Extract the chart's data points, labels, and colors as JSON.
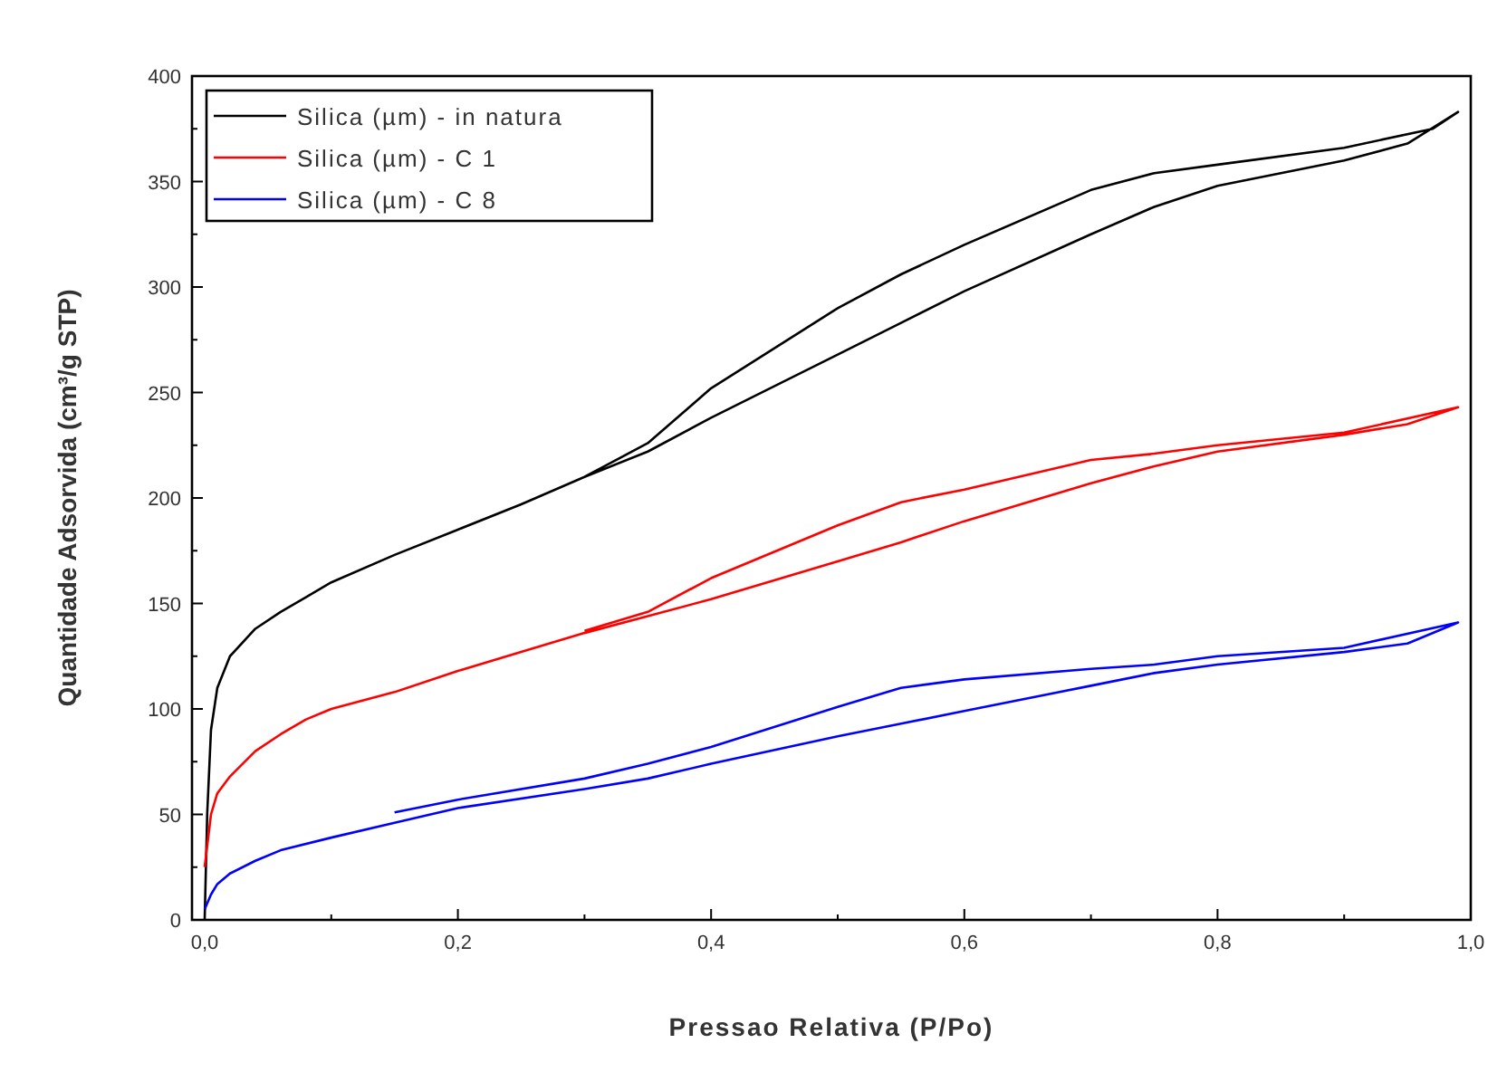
{
  "chart_data": {
    "type": "line",
    "xlabel": "Pressao Relativa (P/Po)",
    "ylabel": "Quantidade Adsorvida (cm³/g STP)",
    "xlim": [
      -0.01,
      1.0
    ],
    "ylim": [
      0,
      400
    ],
    "xticks": [
      {
        "value": 0,
        "label": "0,0"
      },
      {
        "value": 0.1,
        "label": null
      },
      {
        "value": 0.2,
        "label": "0,2"
      },
      {
        "value": 0.3,
        "label": null
      },
      {
        "value": 0.4,
        "label": "0,4"
      },
      {
        "value": 0.5,
        "label": null
      },
      {
        "value": 0.6,
        "label": "0,6"
      },
      {
        "value": 0.7,
        "label": null
      },
      {
        "value": 0.8,
        "label": "0,8"
      },
      {
        "value": 0.9,
        "label": null
      },
      {
        "value": 1.0,
        "label": "1,0"
      }
    ],
    "yticks": [
      0,
      {
        "value": 25,
        "label": null
      },
      50,
      {
        "value": 75,
        "label": null
      },
      100,
      {
        "value": 125,
        "label": null
      },
      150,
      {
        "value": 175,
        "label": null
      },
      200,
      {
        "value": 225,
        "label": null
      },
      250,
      {
        "value": 275,
        "label": null
      },
      300,
      {
        "value": 325,
        "label": null
      },
      350,
      {
        "value": 375,
        "label": null
      },
      400
    ],
    "grid": false,
    "legend": "top left",
    "marker": "none",
    "line_style": "solid",
    "series": [
      {
        "name": "Silica (µm) - in natura",
        "color": "#000000",
        "x": [
          0,
          0.002,
          0.005,
          0.01,
          0.02,
          0.04,
          0.06,
          0.08,
          0.1,
          0.15,
          0.2,
          0.25,
          0.3,
          0.35,
          0.4,
          0.5,
          0.55,
          0.6,
          0.7,
          0.75,
          0.8,
          0.9,
          0.95,
          0.99,
          0.97,
          0.9,
          0.8,
          0.75,
          0.7,
          0.6,
          0.55,
          0.5,
          0.4,
          0.35,
          0.3
        ],
        "values": [
          0,
          50,
          90,
          110,
          125,
          138,
          146,
          153,
          160,
          173,
          185,
          197,
          210,
          222,
          238,
          268,
          283,
          298,
          325,
          338,
          348,
          360,
          368,
          383,
          375,
          366,
          358,
          354,
          346,
          320,
          306,
          290,
          252,
          226,
          210
        ]
      },
      {
        "name": "Silica (µm) - C 1",
        "color": "#ff0000",
        "x": [
          0,
          0.005,
          0.01,
          0.02,
          0.04,
          0.06,
          0.08,
          0.1,
          0.15,
          0.2,
          0.25,
          0.3,
          0.35,
          0.4,
          0.5,
          0.55,
          0.6,
          0.7,
          0.75,
          0.8,
          0.9,
          0.95,
          0.99,
          0.9,
          0.8,
          0.75,
          0.7,
          0.6,
          0.55,
          0.5,
          0.4,
          0.35,
          0.3
        ],
        "values": [
          25,
          50,
          60,
          68,
          80,
          88,
          95,
          100,
          108,
          118,
          127,
          136,
          144,
          152,
          170,
          179,
          189,
          207,
          215,
          222,
          230,
          235,
          243,
          231,
          225,
          221,
          218,
          204,
          198,
          187,
          162,
          146,
          137
        ]
      },
      {
        "name": "Silica (µm) - C 8",
        "color": "#0000ff",
        "x": [
          0,
          0.005,
          0.01,
          0.02,
          0.04,
          0.06,
          0.1,
          0.15,
          0.2,
          0.3,
          0.35,
          0.4,
          0.5,
          0.55,
          0.6,
          0.7,
          0.75,
          0.8,
          0.9,
          0.95,
          0.99,
          0.9,
          0.8,
          0.75,
          0.7,
          0.6,
          0.55,
          0.5,
          0.4,
          0.35,
          0.3,
          0.2,
          0.15
        ],
        "values": [
          5,
          12,
          17,
          22,
          28,
          33,
          39,
          46,
          53,
          62,
          67,
          74,
          87,
          93,
          99,
          111,
          117,
          121,
          127,
          131,
          141,
          129,
          125,
          121,
          119,
          114,
          110,
          101,
          82,
          74,
          67,
          57,
          51
        ]
      }
    ]
  }
}
